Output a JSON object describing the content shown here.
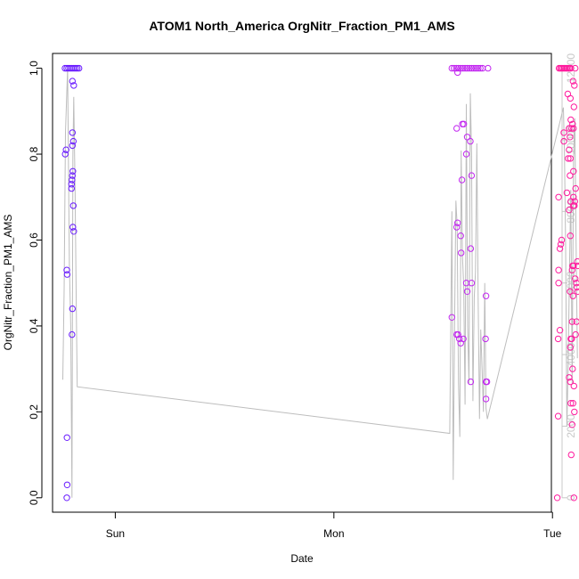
{
  "chart_data": {
    "type": "scatter",
    "title": "ATOM1 North_America OrgNitr_Fraction_PM1_AMS",
    "xlabel": "Date",
    "ylabel": "OrgNitr_Fraction_PM1_AMS",
    "x_unit": "days since Saturday 00:00",
    "xlim": [
      2.713,
      4.995
    ],
    "ylim": [
      0,
      1
    ],
    "y_ticks": [
      0.0,
      0.2,
      0.4,
      0.6,
      0.8,
      1.0
    ],
    "y_tick_labels": [
      "0.0",
      "0.2",
      "0.4",
      "0.6",
      "0.8",
      "1.0"
    ],
    "x_ticks": [
      3,
      4,
      5
    ],
    "x_tick_labels": [
      "Sun",
      "Mon",
      "Tue"
    ],
    "y2lim": [
      0,
      12800
    ],
    "y2_ticks": [
      0,
      2000,
      4000,
      6000,
      8000,
      10000,
      12000
    ],
    "y2_tick_labels": [
      "0",
      "2000",
      "4000",
      "6000",
      "8000",
      "10000",
      "12000"
    ],
    "colors": {
      "early": "#6a1cff",
      "middle": "#c226f0",
      "late": "#ff1c9e",
      "line": "#bdbdbd",
      "right_axis": "#c8c8c8"
    },
    "series": [
      {
        "kind": "points",
        "color": "#6a1cff",
        "points": [
          [
            2.77,
            1.0
          ],
          [
            2.778,
            1.0
          ],
          [
            2.786,
            1.0
          ],
          [
            2.794,
            1.0
          ],
          [
            2.802,
            1.0
          ],
          [
            2.81,
            1.0
          ],
          [
            2.818,
            1.0
          ],
          [
            2.826,
            1.0
          ],
          [
            2.834,
            1.0
          ],
          [
            2.771,
            0.8
          ],
          [
            2.775,
            0.81
          ],
          [
            2.778,
            0.53
          ],
          [
            2.78,
            0.52
          ],
          [
            2.779,
            0.14
          ],
          [
            2.78,
            0.03
          ],
          [
            2.778,
            0.0
          ],
          [
            2.804,
            0.97
          ],
          [
            2.81,
            0.96
          ],
          [
            2.804,
            0.85
          ],
          [
            2.808,
            0.83
          ],
          [
            2.804,
            0.82
          ],
          [
            2.806,
            0.76
          ],
          [
            2.804,
            0.75
          ],
          [
            2.802,
            0.74
          ],
          [
            2.8,
            0.73
          ],
          [
            2.8,
            0.72
          ],
          [
            2.808,
            0.68
          ],
          [
            2.806,
            0.63
          ],
          [
            2.81,
            0.62
          ],
          [
            2.804,
            0.44
          ],
          [
            2.802,
            0.38
          ]
        ]
      },
      {
        "kind": "points",
        "color": "#c226f0",
        "points": [
          [
            4.54,
            1.0
          ],
          [
            4.55,
            1.0
          ],
          [
            4.56,
            1.0
          ],
          [
            4.57,
            1.0
          ],
          [
            4.58,
            1.0
          ],
          [
            4.59,
            1.0
          ],
          [
            4.6,
            1.0
          ],
          [
            4.61,
            1.0
          ],
          [
            4.62,
            1.0
          ],
          [
            4.63,
            1.0
          ],
          [
            4.64,
            1.0
          ],
          [
            4.65,
            1.0
          ],
          [
            4.66,
            1.0
          ],
          [
            4.67,
            1.0
          ],
          [
            4.68,
            1.0
          ],
          [
            4.705,
            1.0
          ],
          [
            4.566,
            0.99
          ],
          [
            4.562,
            0.86
          ],
          [
            4.588,
            0.87
          ],
          [
            4.594,
            0.87
          ],
          [
            4.61,
            0.84
          ],
          [
            4.624,
            0.83
          ],
          [
            4.606,
            0.8
          ],
          [
            4.586,
            0.74
          ],
          [
            4.63,
            0.75
          ],
          [
            4.566,
            0.64
          ],
          [
            4.562,
            0.63
          ],
          [
            4.58,
            0.61
          ],
          [
            4.626,
            0.58
          ],
          [
            4.582,
            0.57
          ],
          [
            4.606,
            0.5
          ],
          [
            4.63,
            0.5
          ],
          [
            4.61,
            0.48
          ],
          [
            4.696,
            0.47
          ],
          [
            4.54,
            0.42
          ],
          [
            4.562,
            0.38
          ],
          [
            4.568,
            0.38
          ],
          [
            4.574,
            0.37
          ],
          [
            4.592,
            0.37
          ],
          [
            4.58,
            0.36
          ],
          [
            4.694,
            0.37
          ],
          [
            4.626,
            0.27
          ],
          [
            4.696,
            0.27
          ],
          [
            4.7,
            0.27
          ],
          [
            4.696,
            0.23
          ]
        ]
      },
      {
        "kind": "points",
        "color": "#ff1c9e",
        "points": [
          [
            5.03,
            1.0
          ],
          [
            5.036,
            1.0
          ],
          [
            5.042,
            1.0
          ],
          [
            5.048,
            1.0
          ],
          [
            5.054,
            1.0
          ],
          [
            5.06,
            1.0
          ],
          [
            5.066,
            1.0
          ],
          [
            5.072,
            1.0
          ],
          [
            5.078,
            1.0
          ],
          [
            5.084,
            1.0
          ],
          [
            5.104,
            1.0
          ],
          [
            5.094,
            0.97
          ],
          [
            5.1,
            0.96
          ],
          [
            5.07,
            0.94
          ],
          [
            5.082,
            0.93
          ],
          [
            5.098,
            0.91
          ],
          [
            5.084,
            0.88
          ],
          [
            5.092,
            0.87
          ],
          [
            5.076,
            0.86
          ],
          [
            5.088,
            0.86
          ],
          [
            5.096,
            0.86
          ],
          [
            5.052,
            0.85
          ],
          [
            5.08,
            0.84
          ],
          [
            5.052,
            0.83
          ],
          [
            5.076,
            0.81
          ],
          [
            5.072,
            0.79
          ],
          [
            5.082,
            0.79
          ],
          [
            5.096,
            0.76
          ],
          [
            5.08,
            0.75
          ],
          [
            5.106,
            0.72
          ],
          [
            5.066,
            0.71
          ],
          [
            5.028,
            0.7
          ],
          [
            5.096,
            0.7
          ],
          [
            5.084,
            0.69
          ],
          [
            5.102,
            0.69
          ],
          [
            5.096,
            0.68
          ],
          [
            5.1,
            0.68
          ],
          [
            5.076,
            0.67
          ],
          [
            5.082,
            0.61
          ],
          [
            5.042,
            0.6
          ],
          [
            5.038,
            0.59
          ],
          [
            5.034,
            0.58
          ],
          [
            5.114,
            0.55
          ],
          [
            5.116,
            0.54
          ],
          [
            5.092,
            0.54
          ],
          [
            5.096,
            0.54
          ],
          [
            5.09,
            0.53
          ],
          [
            5.028,
            0.53
          ],
          [
            5.104,
            0.51
          ],
          [
            5.11,
            0.5
          ],
          [
            5.028,
            0.5
          ],
          [
            5.112,
            0.49
          ],
          [
            5.116,
            0.48
          ],
          [
            5.08,
            0.48
          ],
          [
            5.094,
            0.47
          ],
          [
            5.11,
            0.41
          ],
          [
            5.09,
            0.41
          ],
          [
            5.034,
            0.39
          ],
          [
            5.106,
            0.38
          ],
          [
            5.088,
            0.37
          ],
          [
            5.026,
            0.37
          ],
          [
            5.084,
            0.37
          ],
          [
            5.082,
            0.35
          ],
          [
            5.092,
            0.3
          ],
          [
            5.076,
            0.28
          ],
          [
            5.082,
            0.27
          ],
          [
            5.098,
            0.26
          ],
          [
            5.084,
            0.22
          ],
          [
            5.094,
            0.22
          ],
          [
            5.1,
            0.2
          ],
          [
            5.026,
            0.19
          ],
          [
            5.09,
            0.17
          ],
          [
            5.086,
            0.1
          ],
          [
            5.022,
            0.0
          ],
          [
            5.098,
            0.0
          ]
        ]
      },
      {
        "kind": "line",
        "axis": "right",
        "color": "#bdbdbd",
        "points": [
          [
            2.76,
            3300
          ],
          [
            2.766,
            5800
          ],
          [
            2.772,
            10200
          ],
          [
            2.782,
            12000
          ],
          [
            2.786,
            9200
          ],
          [
            2.79,
            6500
          ],
          [
            2.796,
            4800
          ],
          [
            2.802,
            0
          ],
          [
            2.806,
            9500
          ],
          [
            2.81,
            11200
          ],
          [
            2.816,
            8600
          ],
          [
            2.822,
            5200
          ],
          [
            2.826,
            3100
          ],
          [
            4.53,
            1800
          ],
          [
            4.535,
            4900
          ],
          [
            4.54,
            8000
          ],
          [
            4.546,
            500
          ],
          [
            4.552,
            4800
          ],
          [
            4.558,
            8300
          ],
          [
            4.564,
            7600
          ],
          [
            4.57,
            3200
          ],
          [
            4.576,
            1700
          ],
          [
            4.582,
            9700
          ],
          [
            4.588,
            6800
          ],
          [
            4.594,
            5900
          ],
          [
            4.6,
            2600
          ],
          [
            4.606,
            11000
          ],
          [
            4.612,
            4800
          ],
          [
            4.618,
            3200
          ],
          [
            4.624,
            11300
          ],
          [
            4.63,
            9600
          ],
          [
            4.636,
            2700
          ],
          [
            4.642,
            5600
          ],
          [
            4.648,
            6300
          ],
          [
            4.654,
            9900
          ],
          [
            4.66,
            5500
          ],
          [
            4.666,
            2200
          ],
          [
            4.672,
            4700
          ],
          [
            4.678,
            3600
          ],
          [
            4.684,
            2400
          ],
          [
            4.69,
            6000
          ],
          [
            4.696,
            2500
          ],
          [
            4.702,
            2200
          ],
          [
            5.05,
            10900
          ],
          [
            5.055,
            9600
          ],
          [
            5.06,
            7000
          ],
          [
            5.066,
            2000
          ],
          [
            5.072,
            3800
          ],
          [
            5.078,
            6500
          ],
          [
            5.084,
            8600
          ],
          [
            5.09,
            3200
          ],
          [
            5.096,
            9400
          ],
          [
            5.102,
            10600
          ],
          [
            5.108,
            7200
          ],
          [
            5.114,
            3900
          ]
        ]
      }
    ]
  }
}
